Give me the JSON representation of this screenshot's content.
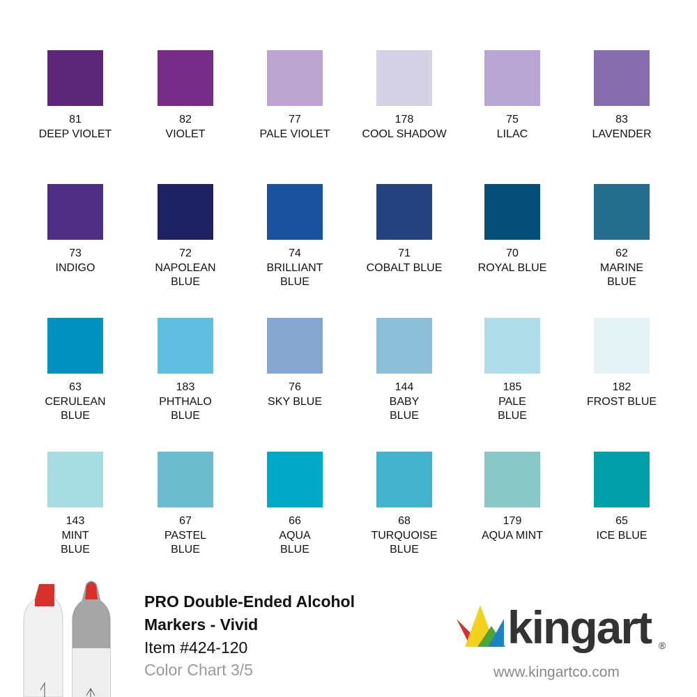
{
  "swatches": [
    {
      "number": "81",
      "name": [
        "DEEP VIOLET"
      ],
      "color": "#5e2878"
    },
    {
      "number": "82",
      "name": [
        "VIOLET"
      ],
      "color": "#772c88"
    },
    {
      "number": "77",
      "name": [
        "PALE VIOLET"
      ],
      "color": "#bba4d0"
    },
    {
      "number": "178",
      "name": [
        "COOL SHADOW"
      ],
      "color": "#d5d2e6"
    },
    {
      "number": "75",
      "name": [
        "LILAC"
      ],
      "color": "#b7a6d3"
    },
    {
      "number": "83",
      "name": [
        "LAVENDER"
      ],
      "color": "#866dad"
    },
    {
      "number": "73",
      "name": [
        "INDIGO"
      ],
      "color": "#4e2f84"
    },
    {
      "number": "72",
      "name": [
        "NAPOLEAN",
        "BLUE"
      ],
      "color": "#1e2263"
    },
    {
      "number": "74",
      "name": [
        "BRILLIANT",
        "BLUE"
      ],
      "color": "#1a52a0"
    },
    {
      "number": "71",
      "name": [
        "COBALT BLUE"
      ],
      "color": "#25427e"
    },
    {
      "number": "70",
      "name": [
        "ROYAL BLUE"
      ],
      "color": "#044e78"
    },
    {
      "number": "62",
      "name": [
        "MARINE",
        "BLUE"
      ],
      "color": "#246d8d"
    },
    {
      "number": "63",
      "name": [
        "CERULEAN",
        "BLUE"
      ],
      "color": "#0292bf"
    },
    {
      "number": "183",
      "name": [
        "PHTHALO",
        "BLUE"
      ],
      "color": "#5fbde0"
    },
    {
      "number": "76",
      "name": [
        "SKY BLUE"
      ],
      "color": "#84a6cf"
    },
    {
      "number": "144",
      "name": [
        "BABY",
        "BLUE"
      ],
      "color": "#8dbfd8"
    },
    {
      "number": "185",
      "name": [
        "PALE",
        "BLUE"
      ],
      "color": "#b0dbe9"
    },
    {
      "number": "182",
      "name": [
        "FROST BLUE"
      ],
      "color": "#e4f2f4"
    },
    {
      "number": "143",
      "name": [
        "MINT",
        "BLUE"
      ],
      "color": "#a6dce0"
    },
    {
      "number": "67",
      "name": [
        "PASTEL",
        "BLUE"
      ],
      "color": "#6abccd"
    },
    {
      "number": "66",
      "name": [
        "AQUA",
        "BLUE"
      ],
      "color": "#03a9c9"
    },
    {
      "number": "68",
      "name": [
        "TURQUOISE",
        "BLUE"
      ],
      "color": "#43b3cb"
    },
    {
      "number": "179",
      "name": [
        "AQUA MINT"
      ],
      "color": "#89c6c6"
    },
    {
      "number": "65",
      "name": [
        "ICE BLUE"
      ],
      "color": "#029fa9"
    }
  ],
  "product": {
    "title": [
      "PRO Double-Ended Alcohol",
      "Markers - Vivid"
    ],
    "item": "Item #424-120",
    "chart": "Color Chart 3/5"
  },
  "logo": {
    "text": "kingart",
    "mark": "®",
    "url": "www.kingartco.com"
  }
}
